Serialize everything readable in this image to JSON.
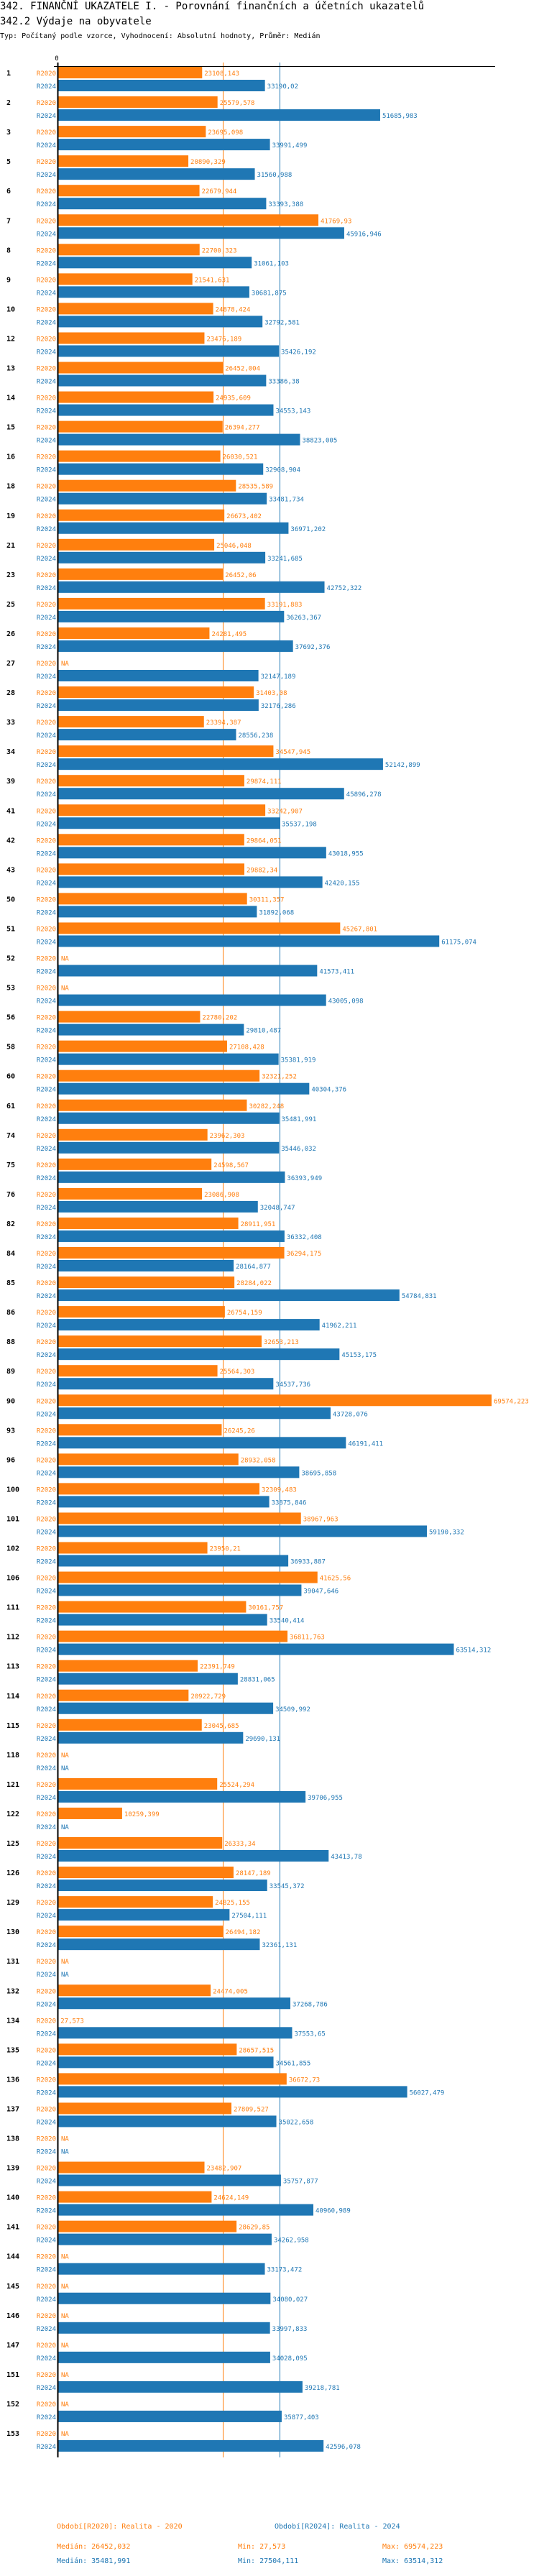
{
  "header": {
    "title": "342. FINANČNÍ UKAZATELE I. - Porovnání finančních a účetních ukazatelů",
    "subtitle": "342.2 Výdaje na obyvatele",
    "info": "Typ: Počítaný podle vzorce, Vyhodnocení: Absolutní hodnoty, Průměr: Medián"
  },
  "colors": {
    "R2020": "#ff7f0e",
    "R2024": "#1f77b4",
    "axis": "#000000"
  },
  "chart_data": {
    "type": "bar",
    "orientation": "horizontal",
    "xlabel": "",
    "ylabel": "",
    "x_ticks": [
      "0"
    ],
    "xlim": [
      0,
      69574.223
    ],
    "grid": false,
    "na_label": "NA",
    "reference_lines": [
      {
        "series": "R2020",
        "label": "Medián",
        "value": 26452.032
      },
      {
        "series": "R2024",
        "label": "Medián",
        "value": 35481.991
      }
    ],
    "categories": [
      "1",
      "2",
      "3",
      "5",
      "6",
      "7",
      "8",
      "9",
      "10",
      "12",
      "13",
      "14",
      "15",
      "16",
      "18",
      "19",
      "21",
      "23",
      "25",
      "26",
      "27",
      "28",
      "33",
      "34",
      "39",
      "41",
      "42",
      "43",
      "50",
      "51",
      "52",
      "53",
      "56",
      "58",
      "60",
      "61",
      "74",
      "75",
      "76",
      "82",
      "84",
      "85",
      "86",
      "88",
      "89",
      "90",
      "93",
      "96",
      "100",
      "101",
      "102",
      "106",
      "111",
      "112",
      "113",
      "114",
      "115",
      "118",
      "121",
      "122",
      "125",
      "126",
      "129",
      "130",
      "131",
      "132",
      "134",
      "135",
      "136",
      "137",
      "138",
      "139",
      "140",
      "141",
      "144",
      "145",
      "146",
      "147",
      "151",
      "152",
      "153"
    ],
    "series": [
      {
        "name": "R2020",
        "values": [
          23108.143,
          25579.578,
          23695.098,
          20890.329,
          22679.944,
          41769.93,
          22700.323,
          21541.631,
          24878.424,
          23476.189,
          26452.004,
          24935.609,
          26394.277,
          26030.521,
          28535.589,
          26673.402,
          25046.048,
          26452.06,
          33191.883,
          24281.495,
          null,
          31403.08,
          23394.387,
          34547.945,
          29874.111,
          33242.907,
          29864.051,
          29882.34,
          30311.357,
          45267.801,
          null,
          null,
          22780.202,
          27108.428,
          32321.252,
          30282.248,
          23962.303,
          24598.567,
          23086.908,
          28911.951,
          36294.175,
          28284.022,
          26754.159,
          32653.213,
          25564.303,
          69574.223,
          26245.26,
          28932.058,
          32309.483,
          38967.963,
          23950.21,
          41625.56,
          30161.757,
          36811.763,
          22391.749,
          20922.729,
          23045.685,
          null,
          25524.294,
          10259.399,
          26333.34,
          28147.189,
          24825.155,
          26494.182,
          null,
          24474.005,
          27.573,
          28657.515,
          36672.73,
          27809.527,
          null,
          23482.907,
          24624.149,
          28629.85,
          null,
          null,
          null,
          null,
          null,
          null,
          null
        ],
        "labels": [
          "23108,143",
          "25579,578",
          "23695,098",
          "20890,329",
          "22679,944",
          "41769,93",
          "22700,323",
          "21541,631",
          "24878,424",
          "23476,189",
          "26452,004",
          "24935,609",
          "26394,277",
          "26030,521",
          "28535,589",
          "26673,402",
          "25046,048",
          "26452,06",
          "33191,883",
          "24281,495",
          "NA",
          "31403,08",
          "23394,387",
          "34547,945",
          "29874,111",
          "33242,907",
          "29864,051",
          "29882,34",
          "30311,357",
          "45267,801",
          "NA",
          "NA",
          "22780,202",
          "27108,428",
          "32321,252",
          "30282,248",
          "23962,303",
          "24598,567",
          "23086,908",
          "28911,951",
          "36294,175",
          "28284,022",
          "26754,159",
          "32653,213",
          "25564,303",
          "69574,223",
          "26245,26",
          "28932,058",
          "32309,483",
          "38967,963",
          "23950,21",
          "41625,56",
          "30161,757",
          "36811,763",
          "22391,749",
          "20922,729",
          "23045,685",
          "NA",
          "25524,294",
          "10259,399",
          "26333,34",
          "28147,189",
          "24825,155",
          "26494,182",
          "NA",
          "24474,005",
          "27,573",
          "28657,515",
          "36672,73",
          "27809,527",
          "NA",
          "23482,907",
          "24624,149",
          "28629,85",
          "NA",
          "NA",
          "NA",
          "NA",
          "NA",
          "NA",
          "NA"
        ]
      },
      {
        "name": "R2024",
        "values": [
          33190.02,
          51685.983,
          33991.499,
          31560.988,
          33393.388,
          45916.946,
          31061.103,
          30681.875,
          32792.581,
          35426.192,
          33386.38,
          34553.143,
          38823.005,
          32908.904,
          33481.734,
          36971.202,
          33241.685,
          42752.322,
          36263.367,
          37692.376,
          32147.189,
          32176.286,
          28556.238,
          52142.899,
          45896.278,
          35537.198,
          43018.955,
          42420.155,
          31892.068,
          61175.074,
          41573.411,
          43005.098,
          29810.487,
          35381.919,
          40304.376,
          35481.991,
          35446.032,
          36393.949,
          32048.747,
          36332.408,
          28164.877,
          54784.831,
          41962.211,
          45153.175,
          34537.736,
          43728.076,
          46191.411,
          38695.858,
          33875.846,
          59190.332,
          36933.887,
          39047.646,
          33540.414,
          63514.312,
          28831.065,
          34509.992,
          29690.131,
          null,
          39706.955,
          null,
          43413.78,
          33545.372,
          27504.111,
          32361.131,
          null,
          37268.786,
          37553.65,
          34561.855,
          56027.479,
          35022.658,
          null,
          35757.877,
          40960.989,
          34262.958,
          33173.472,
          34080.027,
          33997.833,
          34028.095,
          39218.781,
          35877.403,
          42596.078
        ],
        "labels": [
          "33190,02",
          "51685,983",
          "33991,499",
          "31560,988",
          "33393,388",
          "45916,946",
          "31061,103",
          "30681,875",
          "32792,581",
          "35426,192",
          "33386,38",
          "34553,143",
          "38823,005",
          "32908,904",
          "33481,734",
          "36971,202",
          "33241,685",
          "42752,322",
          "36263,367",
          "37692,376",
          "32147,189",
          "32176,286",
          "28556,238",
          "52142,899",
          "45896,278",
          "35537,198",
          "43018,955",
          "42420,155",
          "31892,068",
          "61175,074",
          "41573,411",
          "43005,098",
          "29810,487",
          "35381,919",
          "40304,376",
          "35481,991",
          "35446,032",
          "36393,949",
          "32048,747",
          "36332,408",
          "28164,877",
          "54784,831",
          "41962,211",
          "45153,175",
          "34537,736",
          "43728,076",
          "46191,411",
          "38695,858",
          "33875,846",
          "59190,332",
          "36933,887",
          "39047,646",
          "33540,414",
          "63514,312",
          "28831,065",
          "34509,992",
          "29690,131",
          "NA",
          "39706,955",
          "NA",
          "43413,78",
          "33545,372",
          "27504,111",
          "32361,131",
          "NA",
          "37268,786",
          "37553,65",
          "34561,855",
          "56027,479",
          "35022,658",
          "NA",
          "35757,877",
          "40960,989",
          "34262,958",
          "33173,472",
          "34080,027",
          "33997,833",
          "34028,095",
          "39218,781",
          "35877,403",
          "42596,078"
        ]
      }
    ],
    "legend": [
      {
        "series": "R2020",
        "text": "Období[R2020]: Realita - 2020"
      },
      {
        "series": "R2024",
        "text": "Období[R2024]: Realita - 2024"
      }
    ],
    "legend_position": "bottom",
    "stats": [
      {
        "series": "R2020",
        "median": "Medián: 26452,032",
        "min": "Min: 27,573",
        "max": "Max: 69574,223"
      },
      {
        "series": "R2024",
        "median": "Medián: 35481,991",
        "min": "Min: 27504,111",
        "max": "Max: 63514,312"
      }
    ]
  }
}
